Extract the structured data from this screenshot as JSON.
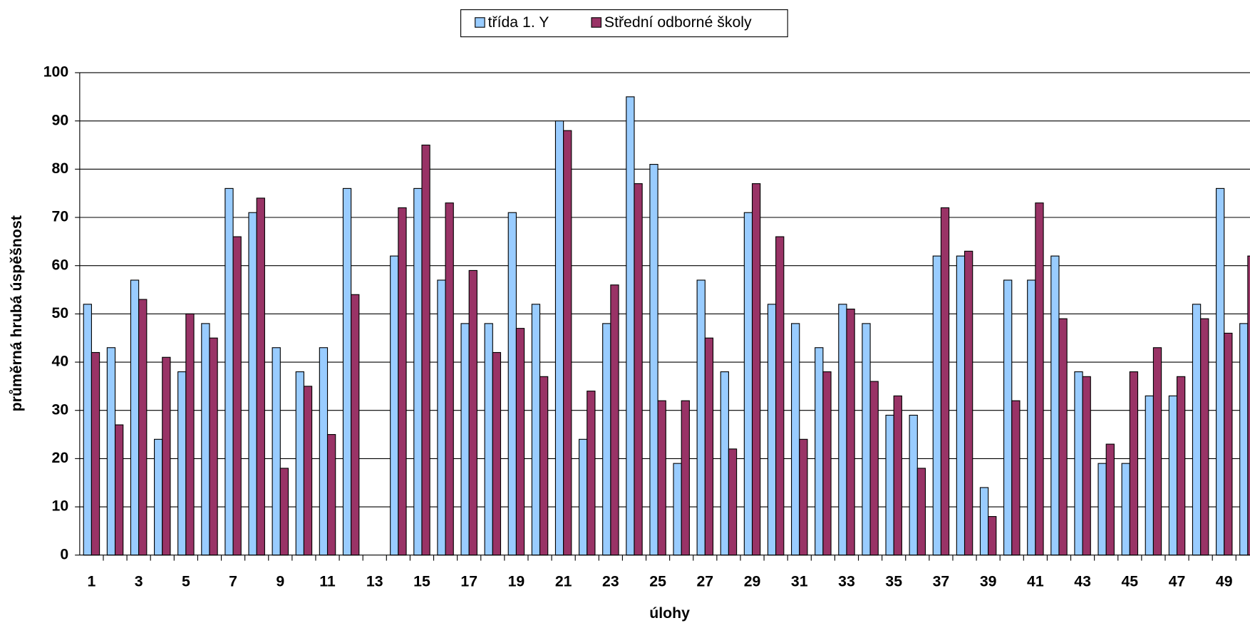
{
  "chart_data": {
    "type": "bar",
    "x_label": "úlohy",
    "y_label": "průměrná hrubá úspěšnost",
    "categories": [
      "1",
      null,
      "3",
      null,
      "5",
      null,
      "7",
      null,
      "9",
      null,
      "11",
      null,
      "13",
      null,
      "15",
      null,
      "17",
      null,
      "19",
      null,
      "21",
      null,
      "23",
      null,
      "25",
      null,
      "27",
      null,
      "29",
      null,
      "31",
      null,
      "33",
      null,
      "35",
      null,
      "37",
      null,
      "39",
      null,
      "41",
      null,
      "43",
      null,
      "45",
      null,
      "47",
      null,
      "49",
      null
    ],
    "series": [
      {
        "name": "třída  1. Y",
        "color": "#99ccff",
        "values": [
          52,
          43,
          57,
          24,
          38,
          48,
          76,
          71,
          43,
          38,
          43,
          76,
          0,
          62,
          76,
          57,
          48,
          48,
          71,
          52,
          90,
          24,
          48,
          95,
          81,
          19,
          57,
          38,
          71,
          52,
          48,
          43,
          52,
          48,
          29,
          29,
          62,
          62,
          14,
          57,
          57,
          62,
          38,
          19,
          19,
          33,
          33,
          52,
          76,
          48
        ]
      },
      {
        "name": "Střední odborné školy",
        "color": "#993366",
        "values": [
          42,
          27,
          53,
          41,
          50,
          45,
          66,
          74,
          18,
          35,
          25,
          54,
          0,
          72,
          85,
          73,
          59,
          42,
          47,
          37,
          88,
          34,
          56,
          77,
          32,
          32,
          45,
          22,
          77,
          66,
          24,
          38,
          51,
          36,
          33,
          18,
          72,
          63,
          8,
          32,
          73,
          49,
          37,
          23,
          38,
          43,
          37,
          49,
          46,
          62
        ]
      }
    ],
    "ylim": [
      0,
      100
    ],
    "yticks": [
      0,
      10,
      20,
      30,
      40,
      50,
      60,
      70,
      80,
      90,
      100
    ],
    "grid": true,
    "legend": "top"
  }
}
